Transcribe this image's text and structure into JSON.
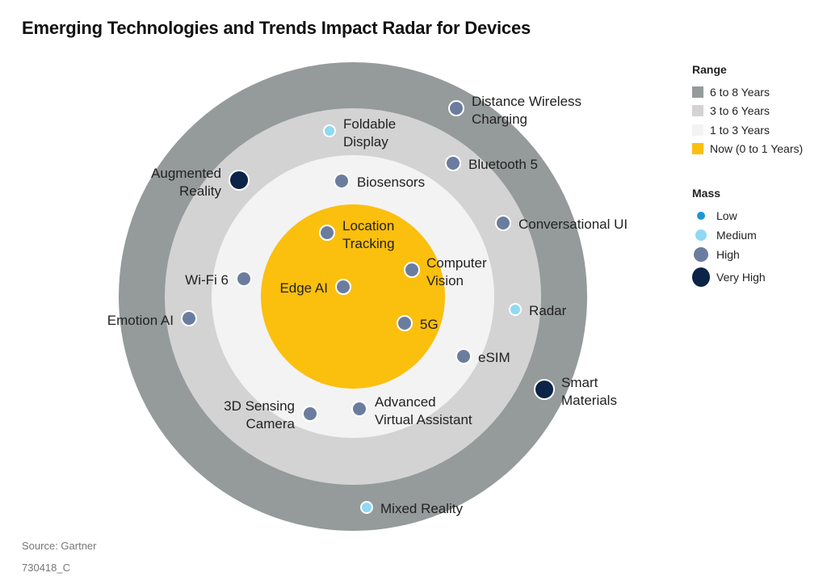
{
  "title": "Emerging Technologies and Trends Impact Radar for Devices",
  "chart_data": {
    "type": "radar-rings",
    "title": "Emerging Technologies and Trends Impact Radar for Devices",
    "rings": [
      {
        "key": "6-8",
        "label": "6 to 8 Years",
        "color": "#959a9a"
      },
      {
        "key": "3-6",
        "label": "3 to 6 Years",
        "color": "#d3d3d3"
      },
      {
        "key": "1-3",
        "label": "1 to 3 Years",
        "color": "#f3f3f3"
      },
      {
        "key": "now",
        "label": "Now (0 to 1 Years)",
        "color": "#fbbf0e"
      }
    ],
    "mass_levels": [
      {
        "key": "low",
        "label": "Low",
        "color": "#1e96d3"
      },
      {
        "key": "medium",
        "label": "Medium",
        "color": "#8fd9f2"
      },
      {
        "key": "high",
        "label": "High",
        "color": "#6b7d9e"
      },
      {
        "key": "very_high",
        "label": "Very High",
        "color": "#0b2447"
      }
    ],
    "items": [
      {
        "name": "Distance Wireless Charging",
        "lines": [
          "Distance Wireless",
          "Charging"
        ],
        "range": "6-8",
        "mass": "high"
      },
      {
        "name": "Foldable Display",
        "lines": [
          "Foldable",
          "Display"
        ],
        "range": "3-6",
        "mass": "medium"
      },
      {
        "name": "Augmented Reality",
        "lines": [
          "Augmented",
          "Reality"
        ],
        "range": "3-6",
        "mass": "very_high"
      },
      {
        "name": "Bluetooth 5",
        "lines": [
          "Bluetooth 5"
        ],
        "range": "3-6",
        "mass": "high"
      },
      {
        "name": "Biosensors",
        "lines": [
          "Biosensors"
        ],
        "range": "1-3",
        "mass": "high"
      },
      {
        "name": "Conversational UI",
        "lines": [
          "Conversational UI"
        ],
        "range": "3-6",
        "mass": "high"
      },
      {
        "name": "Location Tracking",
        "lines": [
          "Location",
          "Tracking"
        ],
        "range": "now",
        "mass": "high"
      },
      {
        "name": "Computer Vision",
        "lines": [
          "Computer",
          "Vision"
        ],
        "range": "now",
        "mass": "high"
      },
      {
        "name": "Wi-Fi 6",
        "lines": [
          "Wi-Fi 6"
        ],
        "range": "1-3",
        "mass": "high"
      },
      {
        "name": "Edge AI",
        "lines": [
          "Edge AI"
        ],
        "range": "now",
        "mass": "high"
      },
      {
        "name": "Emotion AI",
        "lines": [
          "Emotion AI"
        ],
        "range": "3-6",
        "mass": "high"
      },
      {
        "name": "Radar",
        "lines": [
          "Radar"
        ],
        "range": "3-6",
        "mass": "medium"
      },
      {
        "name": "5G",
        "lines": [
          "5G"
        ],
        "range": "now",
        "mass": "high"
      },
      {
        "name": "eSIM",
        "lines": [
          "eSIM"
        ],
        "range": "1-3",
        "mass": "high"
      },
      {
        "name": "Smart Materials",
        "lines": [
          "Smart",
          "Materials"
        ],
        "range": "6-8",
        "mass": "very_high"
      },
      {
        "name": "3D Sensing Camera",
        "lines": [
          "3D Sensing",
          "Camera"
        ],
        "range": "1-3",
        "mass": "high"
      },
      {
        "name": "Advanced Virtual Assistant",
        "lines": [
          "Advanced",
          "Virtual Assistant"
        ],
        "range": "1-3",
        "mass": "high"
      },
      {
        "name": "Mixed Reality",
        "lines": [
          "Mixed Reality"
        ],
        "range": "6-8",
        "mass": "medium"
      }
    ]
  },
  "legend": {
    "range_title": "Range",
    "mass_title": "Mass"
  },
  "footer": {
    "source": "Source: Gartner",
    "id": "730418_C"
  }
}
